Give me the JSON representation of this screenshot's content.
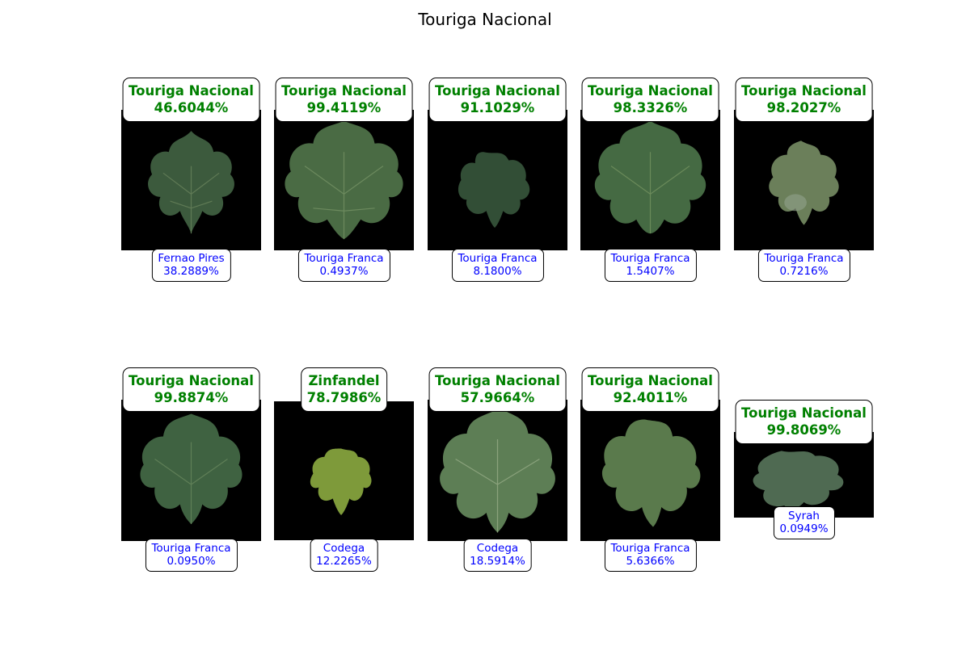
{
  "title": "Touriga Nacional",
  "colors": {
    "top_prediction": "#008000",
    "second_prediction": "#0000ff",
    "image_background": "#000000",
    "leaf_dark": "#3a5b3c",
    "leaf_light": "#6f8a5c",
    "leaf_yellow": "#8aa13d"
  },
  "panels": [
    {
      "top_label": "Touriga Nacional",
      "top_score": "46.6044%",
      "second_label": "Fernao Pires",
      "second_score": "38.2889%"
    },
    {
      "top_label": "Touriga Nacional",
      "top_score": "99.4119%",
      "second_label": "Touriga Franca",
      "second_score": "0.4937%"
    },
    {
      "top_label": "Touriga Nacional",
      "top_score": "91.1029%",
      "second_label": "Touriga Franca",
      "second_score": "8.1800%"
    },
    {
      "top_label": "Touriga Nacional",
      "top_score": "98.3326%",
      "second_label": "Touriga Franca",
      "second_score": "1.5407%"
    },
    {
      "top_label": "Touriga Nacional",
      "top_score": "98.2027%",
      "second_label": "Touriga Franca",
      "second_score": "0.7216%"
    },
    {
      "top_label": "Touriga Nacional",
      "top_score": "99.8874%",
      "second_label": "Touriga Franca",
      "second_score": "0.0950%"
    },
    {
      "top_label": "Zinfandel",
      "top_score": "78.7986%",
      "second_label": "Codega",
      "second_score": "12.2265%"
    },
    {
      "top_label": "Touriga Nacional",
      "top_score": "57.9664%",
      "second_label": "Codega",
      "second_score": "18.5914%"
    },
    {
      "top_label": "Touriga Nacional",
      "top_score": "92.4011%",
      "second_label": "Touriga Franca",
      "second_score": "5.6366%"
    },
    {
      "top_label": "Touriga Nacional",
      "top_score": "99.8069%",
      "second_label": "Syrah",
      "second_score": "0.0949%"
    }
  ]
}
